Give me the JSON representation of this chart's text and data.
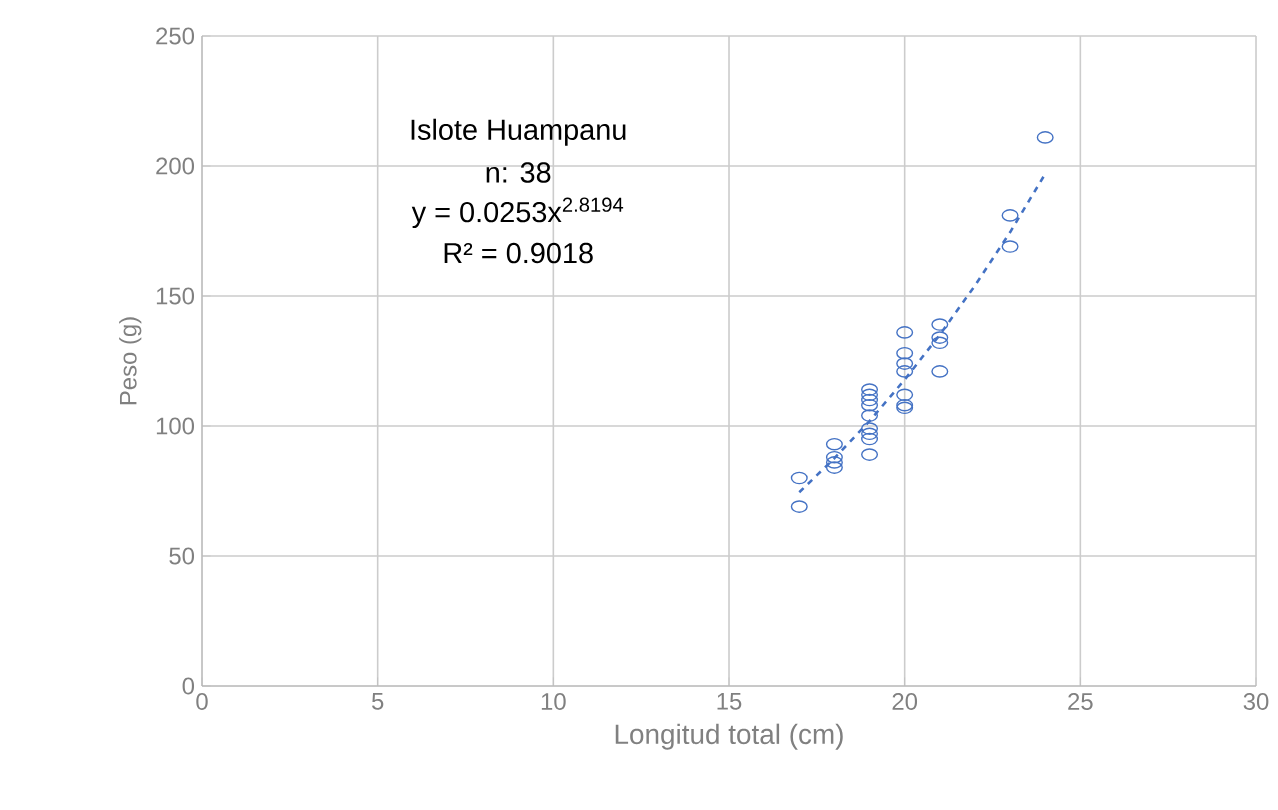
{
  "chart_data": {
    "type": "scatter",
    "xlabel": "Longitud total (cm)",
    "ylabel": "Peso (g)",
    "annotations": [
      "Islote Huampanu",
      "n: 38",
      "y = 0.0253x$^{2.8194}$",
      "R² = 0.9018"
    ],
    "xlim": [
      0,
      30
    ],
    "ylim": [
      0,
      250
    ],
    "xticks": [
      0,
      5,
      10,
      15,
      20,
      25,
      30
    ],
    "yticks": [
      0,
      50,
      100,
      150,
      200,
      250
    ],
    "grid": true,
    "marker": "circle",
    "series": [
      {
        "color": "#4472c4",
        "x": [
          17,
          17,
          18,
          18,
          18,
          18,
          19,
          19,
          19,
          19,
          19,
          19,
          19,
          19,
          19,
          20,
          20,
          20,
          20,
          20,
          20,
          20,
          21,
          21,
          21,
          21,
          23,
          23,
          24
        ],
        "values": [
          80,
          69,
          93,
          88,
          86,
          84,
          89,
          95,
          97,
          99,
          104,
          108,
          110,
          112,
          114,
          136,
          128,
          124,
          121,
          112,
          108,
          107,
          139,
          134,
          132,
          121,
          181,
          169,
          211
        ]
      },
      {
        "type": "line",
        "color": "#4472c4",
        "line_style": "dashed",
        "marker": "none",
        "x": [
          17,
          18,
          19,
          20,
          21,
          22,
          23,
          24
        ],
        "values": [
          74.5,
          87.6,
          101.9,
          117.8,
          135.1,
          154.0,
          174.5,
          197
        ]
      }
    ]
  }
}
